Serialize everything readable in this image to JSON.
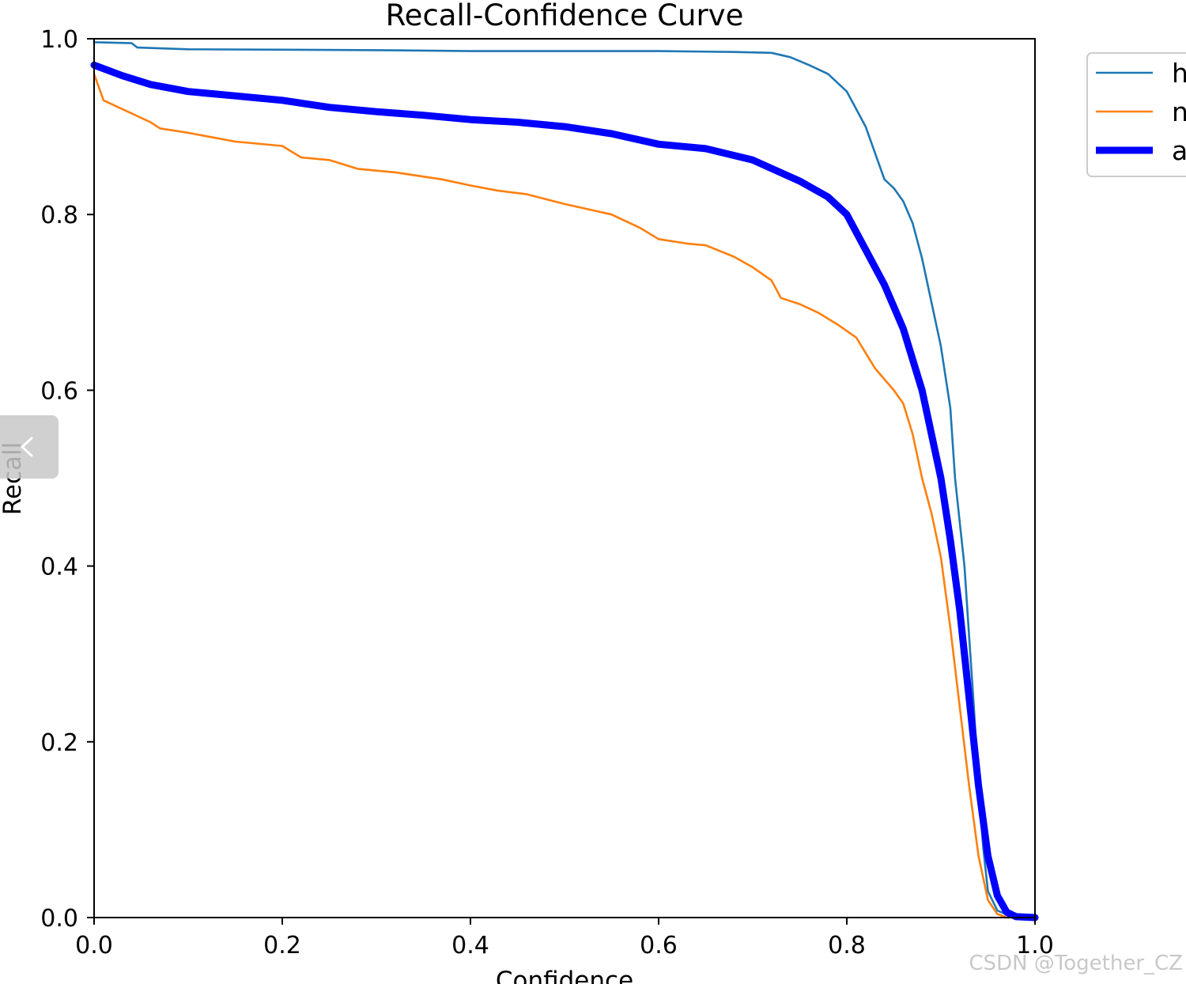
{
  "chart_data": {
    "type": "line",
    "title": "Recall-Confidence Curve",
    "xlabel": "Confidence",
    "ylabel": "Recall",
    "xlim": [
      0.0,
      1.0
    ],
    "ylim": [
      0.0,
      1.0
    ],
    "x_ticks": [
      "0.0",
      "0.2",
      "0.4",
      "0.6",
      "0.8",
      "1.0"
    ],
    "y_ticks": [
      "0.0",
      "0.2",
      "0.4",
      "0.6",
      "0.8",
      "1.0"
    ],
    "grid": false,
    "legend_position": "top-right, partially cut off",
    "legend_visible_text": [
      "h",
      "n",
      "a"
    ],
    "series": [
      {
        "color": "#1f77b4",
        "line": "thin",
        "points": [
          [
            0.0,
            0.996
          ],
          [
            0.04,
            0.995
          ],
          [
            0.046,
            0.99
          ],
          [
            0.1,
            0.988
          ],
          [
            0.3,
            0.987
          ],
          [
            0.4,
            0.986
          ],
          [
            0.6,
            0.986
          ],
          [
            0.68,
            0.985
          ],
          [
            0.72,
            0.984
          ],
          [
            0.74,
            0.979
          ],
          [
            0.76,
            0.97
          ],
          [
            0.78,
            0.96
          ],
          [
            0.8,
            0.94
          ],
          [
            0.81,
            0.92
          ],
          [
            0.82,
            0.9
          ],
          [
            0.83,
            0.87
          ],
          [
            0.84,
            0.84
          ],
          [
            0.85,
            0.83
          ],
          [
            0.86,
            0.815
          ],
          [
            0.87,
            0.79
          ],
          [
            0.88,
            0.75
          ],
          [
            0.89,
            0.7
          ],
          [
            0.9,
            0.65
          ],
          [
            0.91,
            0.58
          ],
          [
            0.915,
            0.5
          ],
          [
            0.92,
            0.45
          ],
          [
            0.925,
            0.4
          ],
          [
            0.93,
            0.32
          ],
          [
            0.935,
            0.24
          ],
          [
            0.94,
            0.15
          ],
          [
            0.945,
            0.08
          ],
          [
            0.95,
            0.03
          ],
          [
            0.96,
            0.008
          ],
          [
            0.975,
            0.001
          ],
          [
            1.0,
            0.0
          ]
        ]
      },
      {
        "color": "#ff7f0e",
        "line": "thin",
        "points": [
          [
            0.0,
            0.96
          ],
          [
            0.01,
            0.93
          ],
          [
            0.03,
            0.92
          ],
          [
            0.06,
            0.905
          ],
          [
            0.07,
            0.898
          ],
          [
            0.1,
            0.893
          ],
          [
            0.15,
            0.883
          ],
          [
            0.2,
            0.878
          ],
          [
            0.22,
            0.865
          ],
          [
            0.25,
            0.862
          ],
          [
            0.28,
            0.852
          ],
          [
            0.32,
            0.848
          ],
          [
            0.37,
            0.84
          ],
          [
            0.4,
            0.833
          ],
          [
            0.43,
            0.827
          ],
          [
            0.46,
            0.823
          ],
          [
            0.5,
            0.812
          ],
          [
            0.55,
            0.8
          ],
          [
            0.58,
            0.785
          ],
          [
            0.6,
            0.772
          ],
          [
            0.63,
            0.767
          ],
          [
            0.65,
            0.765
          ],
          [
            0.68,
            0.752
          ],
          [
            0.7,
            0.74
          ],
          [
            0.72,
            0.725
          ],
          [
            0.73,
            0.705
          ],
          [
            0.75,
            0.698
          ],
          [
            0.77,
            0.688
          ],
          [
            0.79,
            0.675
          ],
          [
            0.81,
            0.66
          ],
          [
            0.83,
            0.625
          ],
          [
            0.85,
            0.6
          ],
          [
            0.86,
            0.585
          ],
          [
            0.87,
            0.55
          ],
          [
            0.88,
            0.5
          ],
          [
            0.89,
            0.46
          ],
          [
            0.9,
            0.41
          ],
          [
            0.91,
            0.33
          ],
          [
            0.92,
            0.24
          ],
          [
            0.93,
            0.15
          ],
          [
            0.94,
            0.07
          ],
          [
            0.95,
            0.02
          ],
          [
            0.96,
            0.004
          ],
          [
            0.97,
            0.0
          ],
          [
            1.0,
            0.0
          ]
        ]
      },
      {
        "color": "#0000ff",
        "line": "thick",
        "points": [
          [
            0.0,
            0.97
          ],
          [
            0.03,
            0.958
          ],
          [
            0.06,
            0.948
          ],
          [
            0.1,
            0.94
          ],
          [
            0.15,
            0.935
          ],
          [
            0.2,
            0.93
          ],
          [
            0.25,
            0.922
          ],
          [
            0.3,
            0.917
          ],
          [
            0.35,
            0.913
          ],
          [
            0.4,
            0.908
          ],
          [
            0.45,
            0.905
          ],
          [
            0.5,
            0.9
          ],
          [
            0.55,
            0.892
          ],
          [
            0.6,
            0.88
          ],
          [
            0.65,
            0.875
          ],
          [
            0.7,
            0.862
          ],
          [
            0.75,
            0.838
          ],
          [
            0.78,
            0.82
          ],
          [
            0.8,
            0.8
          ],
          [
            0.82,
            0.76
          ],
          [
            0.84,
            0.72
          ],
          [
            0.86,
            0.67
          ],
          [
            0.88,
            0.6
          ],
          [
            0.9,
            0.5
          ],
          [
            0.91,
            0.43
          ],
          [
            0.92,
            0.35
          ],
          [
            0.93,
            0.25
          ],
          [
            0.94,
            0.15
          ],
          [
            0.95,
            0.07
          ],
          [
            0.96,
            0.025
          ],
          [
            0.97,
            0.006
          ],
          [
            0.98,
            0.001
          ],
          [
            1.0,
            0.0
          ]
        ]
      }
    ]
  },
  "watermark": "CSDN @Together_CZ",
  "ui": {
    "side_handle_icon": "chevron-left-icon"
  }
}
